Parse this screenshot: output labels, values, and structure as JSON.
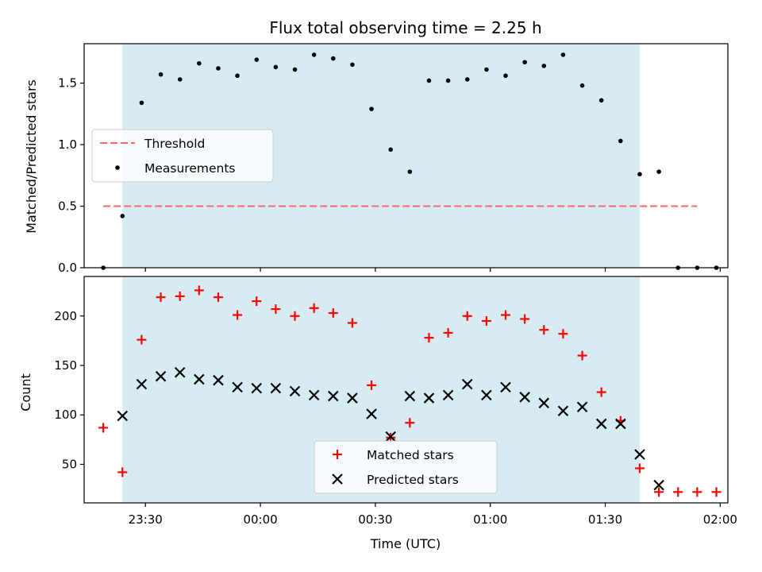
{
  "chart_data": [
    {
      "type": "scatter",
      "title": "Flux total observing time = 2.25 h",
      "ylabel": "Matched/Predicted stars",
      "xlim": [
        "23:14",
        "02:02"
      ],
      "ylim": [
        0,
        1.82
      ],
      "yticks": [
        0.0,
        0.5,
        1.0,
        1.5
      ],
      "ytick_labels": [
        "0.0",
        "0.5",
        "1.0",
        "1.5"
      ],
      "xticks": [
        "23:30",
        "00:00",
        "00:30",
        "01:00",
        "01:30",
        "02:00"
      ],
      "observing_window": [
        "23:24",
        "01:39"
      ],
      "shaded_color": "#add8e6",
      "legend": "center-left",
      "threshold": {
        "name": "Threshold",
        "value": 0.5,
        "x_start": "23:19",
        "x_end": "01:54",
        "color": "#ff6666"
      },
      "series": [
        {
          "name": "Measurements",
          "color": "#000000",
          "points": [
            [
              "23:19",
              0.0
            ],
            [
              "23:24",
              0.42
            ],
            [
              "23:29",
              1.34
            ],
            [
              "23:34",
              1.57
            ],
            [
              "23:39",
              1.53
            ],
            [
              "23:44",
              1.66
            ],
            [
              "23:49",
              1.62
            ],
            [
              "23:54",
              1.56
            ],
            [
              "23:59",
              1.69
            ],
            [
              "00:04",
              1.63
            ],
            [
              "00:09",
              1.61
            ],
            [
              "00:14",
              1.73
            ],
            [
              "00:19",
              1.7
            ],
            [
              "00:24",
              1.65
            ],
            [
              "00:29",
              1.29
            ],
            [
              "00:34",
              0.96
            ],
            [
              "00:39",
              0.78
            ],
            [
              "00:44",
              1.52
            ],
            [
              "00:49",
              1.52
            ],
            [
              "00:54",
              1.53
            ],
            [
              "00:59",
              1.61
            ],
            [
              "01:04",
              1.56
            ],
            [
              "01:09",
              1.67
            ],
            [
              "01:14",
              1.64
            ],
            [
              "01:19",
              1.73
            ],
            [
              "01:24",
              1.48
            ],
            [
              "01:29",
              1.36
            ],
            [
              "01:34",
              1.03
            ],
            [
              "01:39",
              0.76
            ],
            [
              "01:44",
              0.78
            ],
            [
              "01:49",
              0.0
            ],
            [
              "01:54",
              0.0
            ],
            [
              "01:59",
              0.0
            ]
          ]
        }
      ]
    },
    {
      "type": "scatter",
      "xlabel": "Time (UTC)",
      "ylabel": "Count",
      "xlim": [
        "23:14",
        "02:02"
      ],
      "ylim": [
        11,
        240
      ],
      "yticks": [
        50,
        100,
        150,
        200
      ],
      "ytick_labels": [
        "50",
        "100",
        "150",
        "200"
      ],
      "xticks": [
        "23:30",
        "00:00",
        "00:30",
        "01:00",
        "01:30",
        "02:00"
      ],
      "xtick_labels": [
        "23:30",
        "00:00",
        "00:30",
        "01:00",
        "01:30",
        "02:00"
      ],
      "observing_window": [
        "23:24",
        "01:39"
      ],
      "shaded_color": "#add8e6",
      "legend": "lower-center",
      "series": [
        {
          "name": "Matched stars",
          "marker": "plus",
          "color": "#ff0000",
          "points": [
            [
              "23:19",
              87
            ],
            [
              "23:24",
              42
            ],
            [
              "23:29",
              176
            ],
            [
              "23:34",
              219
            ],
            [
              "23:39",
              220
            ],
            [
              "23:44",
              226
            ],
            [
              "23:49",
              219
            ],
            [
              "23:54",
              201
            ],
            [
              "23:59",
              215
            ],
            [
              "00:04",
              207
            ],
            [
              "00:09",
              200
            ],
            [
              "00:14",
              208
            ],
            [
              "00:19",
              203
            ],
            [
              "00:24",
              193
            ],
            [
              "00:29",
              130
            ],
            [
              "00:34",
              77
            ],
            [
              "00:39",
              92
            ],
            [
              "00:44",
              178
            ],
            [
              "00:49",
              183
            ],
            [
              "00:54",
              200
            ],
            [
              "00:59",
              195
            ],
            [
              "01:04",
              201
            ],
            [
              "01:09",
              197
            ],
            [
              "01:14",
              186
            ],
            [
              "01:19",
              182
            ],
            [
              "01:24",
              160
            ],
            [
              "01:29",
              123
            ],
            [
              "01:34",
              94
            ],
            [
              "01:39",
              46
            ],
            [
              "01:44",
              22
            ],
            [
              "01:49",
              22
            ],
            [
              "01:54",
              22
            ],
            [
              "01:59",
              22
            ]
          ]
        },
        {
          "name": "Predicted stars",
          "marker": "x",
          "color": "#000000",
          "points": [
            [
              "23:24",
              99
            ],
            [
              "23:29",
              131
            ],
            [
              "23:34",
              139
            ],
            [
              "23:39",
              143
            ],
            [
              "23:44",
              136
            ],
            [
              "23:49",
              135
            ],
            [
              "23:54",
              128
            ],
            [
              "23:59",
              127
            ],
            [
              "00:04",
              127
            ],
            [
              "00:09",
              124
            ],
            [
              "00:14",
              120
            ],
            [
              "00:19",
              119
            ],
            [
              "00:24",
              117
            ],
            [
              "00:29",
              101
            ],
            [
              "00:34",
              78
            ],
            [
              "00:39",
              119
            ],
            [
              "00:44",
              117
            ],
            [
              "00:49",
              120
            ],
            [
              "00:54",
              131
            ],
            [
              "00:59",
              120
            ],
            [
              "01:04",
              128
            ],
            [
              "01:09",
              118
            ],
            [
              "01:14",
              112
            ],
            [
              "01:19",
              104
            ],
            [
              "01:24",
              108
            ],
            [
              "01:29",
              91
            ],
            [
              "01:34",
              91
            ],
            [
              "01:39",
              60
            ],
            [
              "01:44",
              29
            ]
          ]
        }
      ]
    }
  ]
}
